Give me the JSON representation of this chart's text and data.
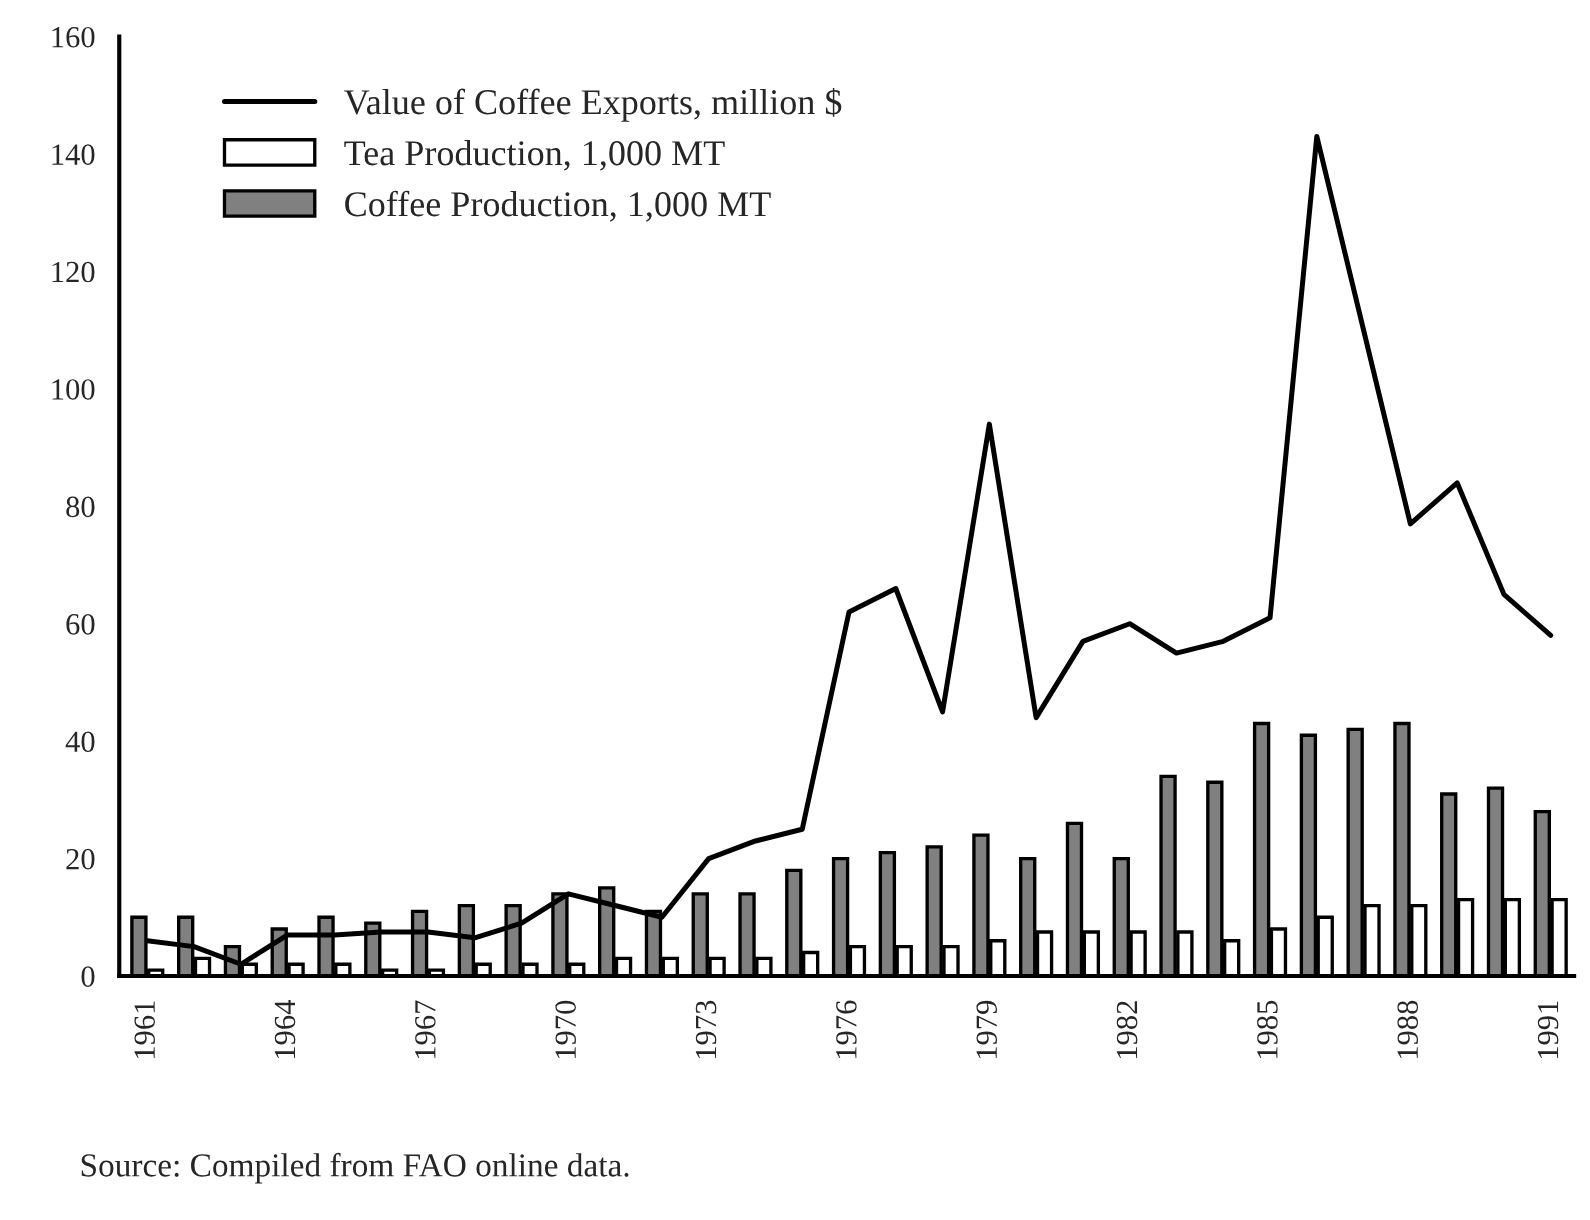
{
  "chart_data": {
    "type": "bar",
    "categories": [
      "1961",
      null,
      null,
      "1964",
      null,
      null,
      "1967",
      null,
      null,
      "1970",
      null,
      null,
      "1973",
      null,
      null,
      "1976",
      null,
      null,
      "1979",
      null,
      null,
      "1982",
      null,
      null,
      "1985",
      null,
      null,
      "1988",
      null,
      null,
      "1991"
    ],
    "series": [
      {
        "name": "Value of Coffee Exports, million $",
        "type": "line",
        "color": "#000000",
        "values": [
          6,
          5,
          2,
          7,
          7,
          7.5,
          7.5,
          6.5,
          9,
          14,
          12,
          10,
          20,
          23,
          25,
          62,
          66,
          45,
          94,
          44,
          57,
          60,
          55,
          57,
          61,
          143,
          110,
          77,
          84,
          65,
          58
        ]
      },
      {
        "name": "Tea Production, 1,000 MT",
        "color": "#ffffff",
        "values": [
          1,
          3,
          2,
          2,
          2,
          1,
          1,
          2,
          2,
          2,
          3,
          3,
          3,
          3,
          4,
          5,
          5,
          5,
          6,
          7.5,
          7.5,
          7.5,
          7.5,
          6,
          8,
          10,
          12,
          12,
          13,
          13,
          13
        ]
      },
      {
        "name": "Coffee Production, 1,000 MT",
        "color": "#808080",
        "values": [
          10,
          10,
          5,
          8,
          10,
          9,
          11,
          12,
          12,
          14,
          15,
          11,
          14,
          14,
          18,
          20,
          21,
          22,
          24,
          20,
          26,
          20,
          34,
          33,
          43,
          41,
          42,
          43,
          31,
          32,
          28
        ]
      }
    ],
    "ylim": [
      0,
      160
    ],
    "yticks": [
      0,
      20,
      40,
      60,
      80,
      100,
      120,
      140,
      160
    ],
    "legend": "top left",
    "annotations": [
      "Source: Compiled from FAO online data."
    ]
  }
}
